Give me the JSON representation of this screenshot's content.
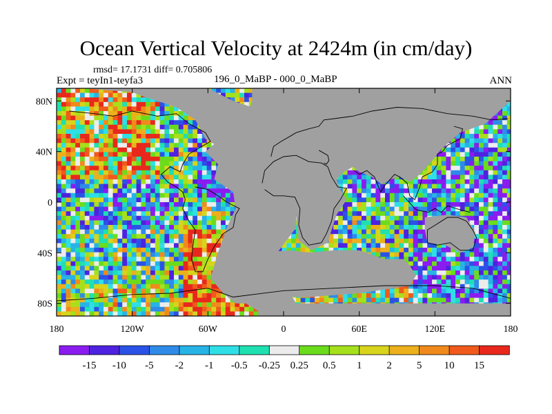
{
  "chart_data": {
    "type": "heatmap",
    "title": "Ocean Vertical Velocity at 2424m (in cm/day)",
    "stats_text": "rmsd= 17.1731 diff= 0.705806",
    "experiment_text": "Expt = teyIn1-teyfa3",
    "case_text": "196_0_MaBP - 000_0_MaBP",
    "season_text": "ANN",
    "xlim": [
      -180,
      180
    ],
    "ylim": [
      -90,
      90
    ],
    "x_ticks": [
      {
        "value": -180,
        "label": "180"
      },
      {
        "value": -120,
        "label": "120W"
      },
      {
        "value": -60,
        "label": "60W"
      },
      {
        "value": 0,
        "label": "0"
      },
      {
        "value": 60,
        "label": "60E"
      },
      {
        "value": 120,
        "label": "120E"
      },
      {
        "value": 180,
        "label": "180"
      }
    ],
    "y_ticks": [
      {
        "value": 80,
        "label": "80N"
      },
      {
        "value": 40,
        "label": "40N"
      },
      {
        "value": 0,
        "label": "0"
      },
      {
        "value": -40,
        "label": "40S"
      },
      {
        "value": -80,
        "label": "80S"
      }
    ],
    "colorbar": {
      "colors": [
        "#8a1cf0",
        "#4e22e0",
        "#2b52e6",
        "#2f8be8",
        "#27b3e6",
        "#2fdfe6",
        "#1fe0b0",
        "#ececec",
        "#6bdc1c",
        "#a6e01c",
        "#d8d41c",
        "#ecb01c",
        "#f08a1c",
        "#f05a1c",
        "#e8281c"
      ],
      "labels": [
        "-15",
        "-10",
        "-5",
        "-2",
        "-1",
        "-0.5",
        "-0.25",
        "0.25",
        "0.5",
        "1",
        "2",
        "5",
        "10",
        "15"
      ]
    },
    "land_color": "#a0a0a0"
  }
}
